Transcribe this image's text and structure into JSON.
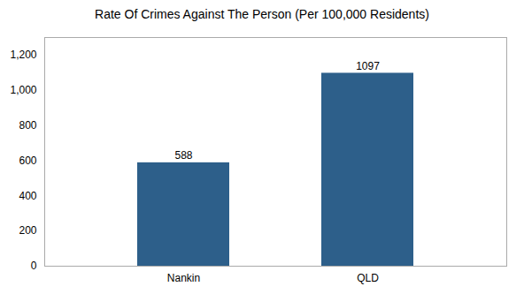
{
  "chart_data": {
    "type": "bar",
    "title": "Rate Of Crimes Against The Person (Per 100,000 Residents)",
    "categories": [
      "Nankin",
      "QLD"
    ],
    "values": [
      588,
      1097
    ],
    "color": "#2d5f8a",
    "ylim": [
      0,
      1300
    ],
    "yticks": [
      0,
      200,
      400,
      600,
      800,
      1000,
      1200
    ],
    "grid": false,
    "data_labels": true
  }
}
